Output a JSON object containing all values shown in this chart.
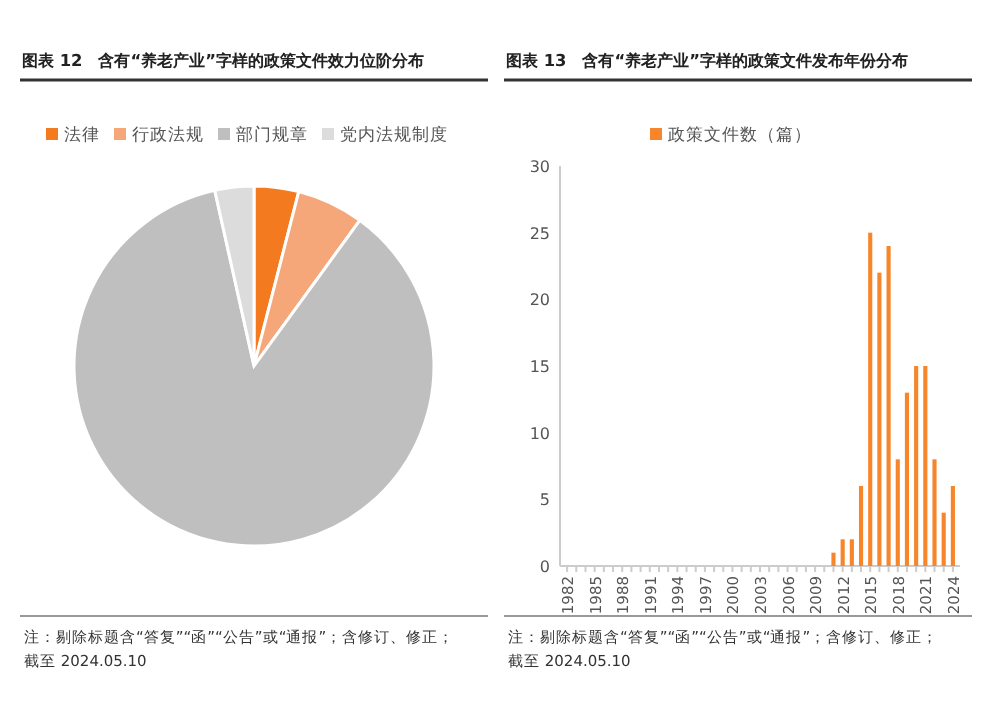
{
  "chart_data": [
    {
      "type": "pie",
      "title": "图表 12　含有“养老产业”字样的政策文件效力位阶分布",
      "categories": [
        "法律",
        "行政法规",
        "部门规章",
        "党内法规制度"
      ],
      "values": [
        4,
        6,
        86.5,
        3.5
      ],
      "colors": [
        "#f47a20",
        "#f5a77a",
        "#bfbfbf",
        "#dcdcdc"
      ],
      "legend": "top",
      "annotations": [
        "注：剔除标题含“答复”“函”“公告”或“通报”；含修订、修正；",
        "截至 2024.05.10"
      ]
    },
    {
      "type": "bar",
      "title": "图表 13　含有“养老产业”字样的政策文件发布年份分布",
      "categories": [
        "1982",
        null,
        null,
        "1985",
        null,
        null,
        "1988",
        null,
        null,
        "1991",
        null,
        null,
        "1994",
        null,
        null,
        "1997",
        null,
        null,
        "2000",
        null,
        null,
        "2003",
        null,
        null,
        "2006",
        null,
        null,
        "2009",
        null,
        null,
        "2012",
        null,
        null,
        "2015",
        null,
        null,
        "2018",
        null,
        null,
        "2021",
        null,
        null,
        "2024"
      ],
      "series": [
        {
          "name": "政策文件数（篇）",
          "color": "#f7862a",
          "values": [
            0,
            0,
            0,
            0,
            0,
            0,
            0,
            0,
            0,
            0,
            0,
            0,
            0,
            0,
            0,
            0,
            0,
            0,
            0,
            0,
            0,
            0,
            0,
            0,
            0,
            0,
            0,
            0,
            0,
            1,
            2,
            2,
            6,
            25,
            22,
            24,
            8,
            13,
            15,
            15,
            8,
            4,
            6
          ]
        }
      ],
      "ylim": [
        0,
        30
      ],
      "yticks": [
        0,
        5,
        10,
        15,
        20,
        25,
        30
      ],
      "grid": false,
      "legend": "top",
      "annotations": [
        "注：剔除标题含“答复”“函”“公告”或“通报”；含修订、修正；",
        "截至 2024.05.10"
      ]
    }
  ]
}
